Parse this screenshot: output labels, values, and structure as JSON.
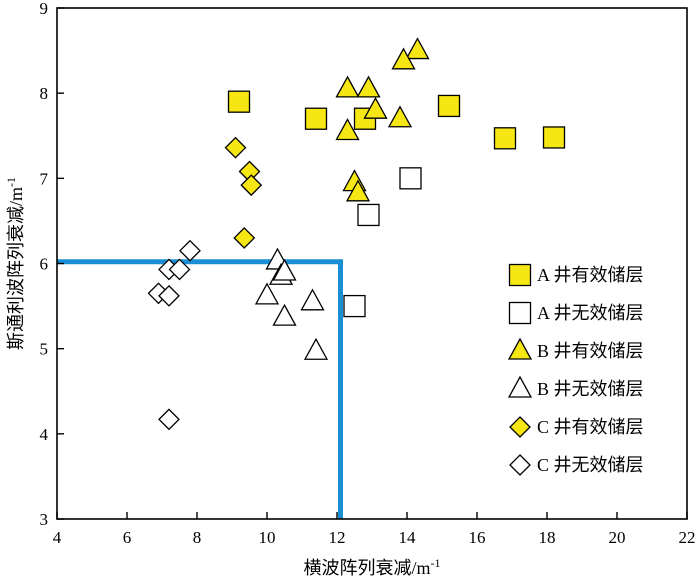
{
  "chart_data": {
    "type": "scatter",
    "xlabel": "横波阵列衰减/m",
    "xlabel_sup": "-1",
    "ylabel": "斯通利波阵列衰减/m",
    "ylabel_sup": "-1",
    "xlim": [
      4,
      22
    ],
    "ylim": [
      3,
      9
    ],
    "xticks": [
      4,
      6,
      8,
      10,
      12,
      14,
      16,
      18,
      20,
      22
    ],
    "yticks": [
      3,
      4,
      5,
      6,
      7,
      8,
      9
    ],
    "grid": false,
    "legend_position": "right",
    "threshold_line": {
      "color": "#1a8fd6",
      "y": 6.02,
      "x": 12.1
    },
    "series": [
      {
        "name": "A 井有效储层",
        "marker": "square",
        "fill": "#f5e614",
        "points": [
          [
            9.2,
            7.9
          ],
          [
            11.4,
            7.7
          ],
          [
            12.8,
            7.7
          ],
          [
            15.2,
            7.85
          ],
          [
            16.8,
            7.47
          ],
          [
            18.2,
            7.48
          ]
        ]
      },
      {
        "name": "A 井无效储层",
        "marker": "square",
        "fill": "#ffffff",
        "points": [
          [
            14.1,
            7.0
          ],
          [
            12.9,
            6.57
          ],
          [
            12.5,
            5.5
          ]
        ]
      },
      {
        "name": "B 井有效储层",
        "marker": "triangle",
        "fill": "#f5e614",
        "points": [
          [
            14.3,
            8.5
          ],
          [
            13.9,
            8.38
          ],
          [
            12.3,
            8.05
          ],
          [
            12.9,
            8.05
          ],
          [
            13.1,
            7.8
          ],
          [
            12.3,
            7.55
          ],
          [
            13.8,
            7.7
          ],
          [
            12.5,
            6.95
          ],
          [
            12.6,
            6.83
          ]
        ]
      },
      {
        "name": "B 井无效储层",
        "marker": "triangle",
        "fill": "#ffffff",
        "points": [
          [
            10.3,
            6.03
          ],
          [
            10.4,
            5.85
          ],
          [
            10.5,
            5.9
          ],
          [
            10.0,
            5.62
          ],
          [
            11.3,
            5.55
          ],
          [
            10.5,
            5.37
          ],
          [
            11.4,
            4.97
          ]
        ]
      },
      {
        "name": "C 井有效储层",
        "marker": "diamond",
        "fill": "#f5e614",
        "points": [
          [
            9.1,
            7.36
          ],
          [
            9.5,
            7.08
          ],
          [
            9.55,
            6.92
          ],
          [
            9.35,
            6.3
          ]
        ]
      },
      {
        "name": "C 井无效储层",
        "marker": "diamond",
        "fill": "#ffffff",
        "points": [
          [
            7.8,
            6.15
          ],
          [
            7.2,
            5.93
          ],
          [
            7.5,
            5.93
          ],
          [
            6.9,
            5.65
          ],
          [
            7.2,
            5.62
          ],
          [
            7.2,
            4.17
          ]
        ]
      }
    ]
  }
}
